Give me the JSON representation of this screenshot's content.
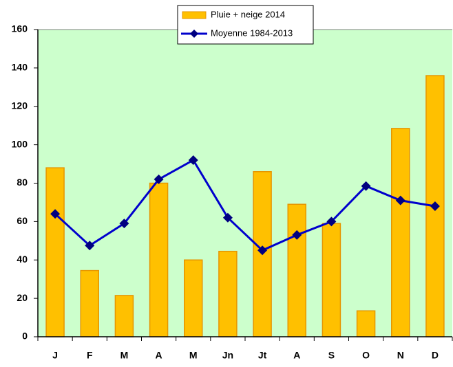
{
  "chart_data": {
    "type": "bar",
    "categories": [
      "J",
      "F",
      "M",
      "A",
      "M",
      "Jn",
      "Jt",
      "A",
      "S",
      "O",
      "N",
      "D"
    ],
    "series": [
      {
        "name": "Pluie + neige 2014",
        "type": "bar",
        "color": "#ffc000",
        "values": [
          88,
          34.5,
          21.5,
          80,
          40,
          44.5,
          86,
          69,
          59,
          13.5,
          108.5,
          136
        ]
      },
      {
        "name": "Moyenne 1984-2013",
        "type": "line",
        "color": "#0000cc",
        "values": [
          64,
          47.5,
          59,
          82,
          92,
          62,
          45,
          53,
          60,
          78.5,
          71,
          68
        ]
      }
    ],
    "ylim": [
      0,
      160
    ],
    "yticks": [
      0,
      20,
      40,
      60,
      80,
      100,
      120,
      140,
      160
    ],
    "grid": false,
    "legend": "top",
    "background": "#ccffcc"
  }
}
